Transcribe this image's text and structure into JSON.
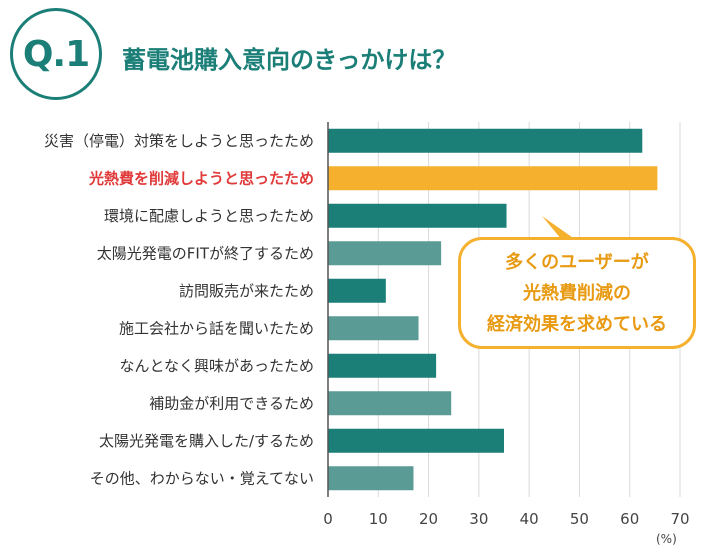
{
  "header": {
    "q_label": "Q.1",
    "title": "蓄電池購入意向のきっかけは？"
  },
  "callout": {
    "lines": [
      "多くのユーザーが",
      "光熱費削減の",
      "経済効果を求めている"
    ]
  },
  "colors": {
    "teal_dark": "#1b7f78",
    "teal_light": "#5a9b96",
    "highlight": "#f5b12e",
    "highlight_text": "#e03a3a"
  },
  "chart_data": {
    "type": "bar",
    "orientation": "horizontal",
    "categories": [
      "災害（停電）対策をしようと思ったため",
      "光熱費を削減しようと思ったため",
      "環境に配慮しようと思ったため",
      "太陽光発電のFITが終了するため",
      "訪問販売が来たため",
      "施工会社から話を聞いたため",
      "なんとなく興味があったため",
      "補助金が利用できるため",
      "太陽光発電を購入した/するため",
      "その他、わからない・覚えてない"
    ],
    "values": [
      62.5,
      65.5,
      35.5,
      22.5,
      11.5,
      18,
      21.5,
      24.5,
      35,
      17
    ],
    "highlight_index": 1,
    "xlim": [
      0,
      70
    ],
    "xticks": [
      0,
      10,
      20,
      30,
      40,
      50,
      60,
      70
    ],
    "unit": "(%)",
    "grid": true
  }
}
